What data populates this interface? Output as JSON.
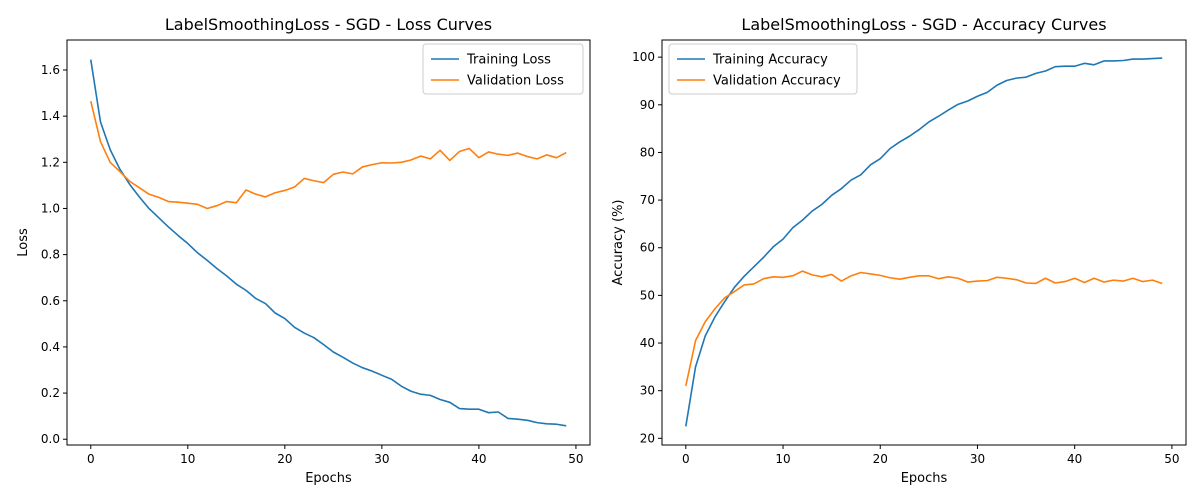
{
  "chart_data": [
    {
      "type": "line",
      "title": "LabelSmoothingLoss - SGD - Loss Curves",
      "xlabel": "Epochs",
      "ylabel": "Loss",
      "xlim": [
        -2.45,
        51.45
      ],
      "ylim": [
        -0.025,
        1.73
      ],
      "xticks": [
        0,
        10,
        20,
        30,
        40,
        50
      ],
      "yticks": [
        0.0,
        0.2,
        0.4,
        0.6,
        0.8,
        1.0,
        1.2,
        1.4,
        1.6
      ],
      "ytick_labels": [
        "0.0",
        "0.2",
        "0.4",
        "0.6",
        "0.8",
        "1.0",
        "1.2",
        "1.4",
        "1.6"
      ],
      "grid": false,
      "legend": "top-right",
      "series": [
        {
          "name": "Training Loss",
          "color": "#1f77b4",
          "values": [
            1.645,
            1.375,
            1.255,
            1.17,
            1.105,
            1.05,
            1.0,
            0.96,
            0.92,
            0.883,
            0.848,
            0.808,
            0.775,
            0.74,
            0.708,
            0.672,
            0.645,
            0.61,
            0.588,
            0.547,
            0.523,
            0.485,
            0.46,
            0.44,
            0.41,
            0.378,
            0.355,
            0.33,
            0.31,
            0.295,
            0.277,
            0.26,
            0.23,
            0.208,
            0.195,
            0.19,
            0.172,
            0.16,
            0.133,
            0.13,
            0.13,
            0.115,
            0.118,
            0.09,
            0.087,
            0.082,
            0.072,
            0.067,
            0.065,
            0.058
          ]
        },
        {
          "name": "Validation Loss",
          "color": "#ff7f0e",
          "values": [
            1.465,
            1.29,
            1.2,
            1.16,
            1.118,
            1.09,
            1.062,
            1.048,
            1.03,
            1.027,
            1.023,
            1.018,
            1.0,
            1.012,
            1.03,
            1.025,
            1.08,
            1.062,
            1.05,
            1.068,
            1.078,
            1.093,
            1.13,
            1.12,
            1.112,
            1.148,
            1.158,
            1.15,
            1.18,
            1.19,
            1.198,
            1.197,
            1.2,
            1.21,
            1.227,
            1.215,
            1.252,
            1.208,
            1.247,
            1.26,
            1.22,
            1.245,
            1.235,
            1.23,
            1.24,
            1.225,
            1.215,
            1.232,
            1.22,
            1.242
          ]
        }
      ]
    },
    {
      "type": "line",
      "title": "LabelSmoothingLoss - SGD - Accuracy Curves",
      "xlabel": "Epochs",
      "ylabel": "Accuracy (%)",
      "xlim": [
        -2.45,
        51.45
      ],
      "ylim": [
        18.6,
        103.6
      ],
      "xticks": [
        0,
        10,
        20,
        30,
        40,
        50
      ],
      "yticks": [
        20,
        30,
        40,
        50,
        60,
        70,
        80,
        90,
        100
      ],
      "ytick_labels": [
        "20",
        "30",
        "40",
        "50",
        "60",
        "70",
        "80",
        "90",
        "100"
      ],
      "grid": false,
      "legend": "top-left",
      "series": [
        {
          "name": "Training Accuracy",
          "color": "#1f77b4",
          "values": [
            22.5,
            35.0,
            41.5,
            45.5,
            48.7,
            51.7,
            54.0,
            56.0,
            58.0,
            60.2,
            61.8,
            64.2,
            65.8,
            67.7,
            69.1,
            71.0,
            72.4,
            74.2,
            75.3,
            77.4,
            78.7,
            80.8,
            82.2,
            83.4,
            84.8,
            86.4,
            87.6,
            88.9,
            90.1,
            90.8,
            91.8,
            92.6,
            94.1,
            95.1,
            95.6,
            95.8,
            96.6,
            97.1,
            98.0,
            98.1,
            98.1,
            98.7,
            98.4,
            99.2,
            99.2,
            99.3,
            99.6,
            99.6,
            99.7,
            99.8
          ]
        },
        {
          "name": "Validation Accuracy",
          "color": "#ff7f0e",
          "values": [
            31.0,
            40.5,
            44.5,
            47.2,
            49.5,
            50.8,
            52.2,
            52.4,
            53.5,
            53.9,
            53.8,
            54.1,
            55.1,
            54.3,
            53.9,
            54.4,
            53.0,
            54.1,
            54.8,
            54.5,
            54.2,
            53.7,
            53.4,
            53.8,
            54.1,
            54.1,
            53.5,
            53.9,
            53.6,
            52.8,
            53.0,
            53.1,
            53.8,
            53.6,
            53.3,
            52.6,
            52.5,
            53.6,
            52.6,
            52.9,
            53.6,
            52.7,
            53.6,
            52.8,
            53.2,
            53.0,
            53.6,
            52.9,
            53.2,
            52.5
          ]
        }
      ]
    }
  ]
}
